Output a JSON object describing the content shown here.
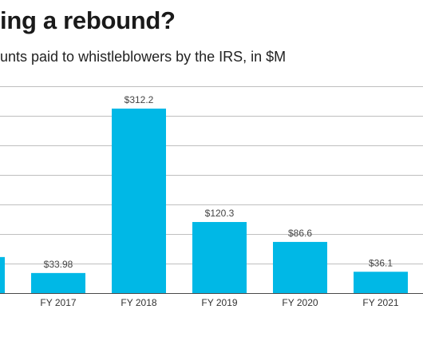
{
  "chart_data": {
    "type": "bar",
    "title": "ing a rebound?",
    "subtitle": "unts paid to whistleblowers by the IRS, in $M",
    "categories": [
      "",
      "FY 2017",
      "FY 2018",
      "FY 2019",
      "FY 2020",
      "FY 2021"
    ],
    "values": [
      61,
      33.98,
      312.2,
      120.3,
      86.6,
      36.1
    ],
    "data_labels": [
      "",
      "$33.98",
      "$312.2",
      "$120.3",
      "$86.6",
      "$36.1"
    ],
    "ylim": [
      0,
      350
    ],
    "grid": true,
    "colors": {
      "bar": "#00b8e6",
      "grid": "#bfbfbf",
      "baseline": "#4a4a4a"
    }
  }
}
